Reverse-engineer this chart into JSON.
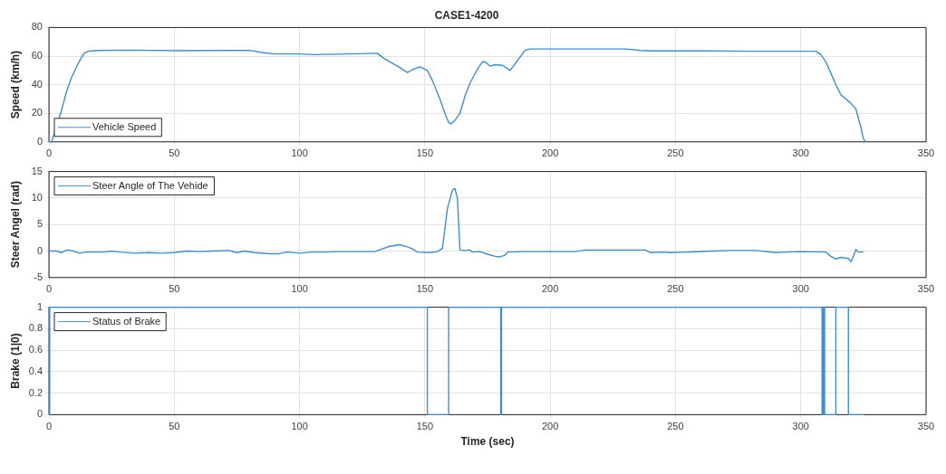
{
  "chart_data": [
    {
      "type": "line",
      "title": "CASE1-4200",
      "ylabel": "Speed (km/h)",
      "xlim": [
        0,
        350
      ],
      "xticks": [
        0,
        50,
        100,
        150,
        200,
        250,
        300,
        350
      ],
      "ylim": [
        0,
        80
      ],
      "yticks": [
        0,
        20,
        40,
        60,
        80
      ],
      "grid": true,
      "legend": "bottom left",
      "series": [
        {
          "name": "Vehicle Speed",
          "color": "#3d8fd1",
          "x": [
            0,
            1,
            3,
            5,
            7,
            9,
            12,
            14,
            16,
            20,
            33,
            50,
            75,
            80,
            85,
            90,
            100,
            105,
            120,
            131,
            134,
            140,
            143,
            145,
            148,
            151,
            153,
            156,
            158,
            159.5,
            160.5,
            162,
            164,
            166,
            168,
            171,
            173,
            174,
            176,
            178,
            181,
            184,
            187,
            190,
            192,
            200,
            230,
            236,
            240,
            260,
            280,
            306,
            308,
            310,
            314,
            316,
            320,
            322,
            324,
            325,
            326
          ],
          "values": [
            0,
            0,
            10,
            22,
            35,
            45,
            56,
            62,
            63.5,
            64,
            64.2,
            63.8,
            64,
            64,
            62.5,
            61.5,
            61.5,
            61,
            61.5,
            62,
            58,
            52,
            48.5,
            50.5,
            52.5,
            50,
            43,
            30,
            20,
            13.5,
            12.5,
            15,
            20,
            32,
            41,
            51,
            56,
            56,
            53,
            54,
            53.5,
            50,
            57,
            64,
            65,
            65,
            65,
            64,
            63.6,
            63.6,
            63.4,
            63.4,
            61,
            56,
            40,
            33,
            27,
            23,
            10,
            2,
            0
          ]
        }
      ]
    },
    {
      "type": "line",
      "ylabel": "Steer Angel (rad)",
      "xlim": [
        0,
        350
      ],
      "xticks": [
        0,
        50,
        100,
        150,
        200,
        250,
        300,
        350
      ],
      "ylim": [
        -5,
        15
      ],
      "yticks": [
        -5,
        0,
        5,
        10,
        15
      ],
      "grid": true,
      "legend": "top left",
      "series": [
        {
          "name": "Steer Angle of The Vehide",
          "color": "#3d8fd1",
          "x": [
            0,
            3,
            5,
            7,
            9,
            12,
            15,
            22,
            25,
            28,
            34,
            40,
            45,
            50,
            55,
            60,
            66,
            72,
            75,
            78,
            82,
            88,
            92,
            95,
            100,
            105,
            110,
            115,
            120,
            130,
            133,
            136,
            140,
            143,
            145,
            147,
            152,
            155,
            157,
            159,
            161,
            162,
            163,
            164,
            166,
            168,
            169,
            172,
            175,
            178,
            180,
            182,
            183,
            190,
            200,
            210,
            214,
            220,
            230,
            238,
            240,
            245,
            248,
            255,
            265,
            272,
            282,
            290,
            295,
            300,
            310,
            312,
            314,
            316,
            319,
            320,
            321,
            322,
            323,
            325
          ],
          "values": [
            0,
            0,
            -0.3,
            0.2,
            0.1,
            -0.4,
            -0.2,
            -0.2,
            0,
            -0.2,
            -0.4,
            -0.3,
            -0.4,
            -0.3,
            0,
            -0.1,
            0,
            0.1,
            -0.3,
            0,
            -0.3,
            -0.5,
            -0.5,
            -0.2,
            -0.4,
            -0.2,
            -0.2,
            -0.1,
            -0.1,
            -0.1,
            0.4,
            0.9,
            1.2,
            0.8,
            0.4,
            -0.2,
            -0.3,
            -0.1,
            0.5,
            8,
            11.5,
            11.8,
            10,
            0.2,
            0.1,
            0.2,
            -0.2,
            -0.1,
            -0.6,
            -1,
            -1.1,
            -0.8,
            -0.2,
            -0.1,
            -0.1,
            -0.1,
            0.2,
            0.2,
            0.2,
            0.2,
            -0.3,
            -0.2,
            -0.3,
            -0.2,
            0,
            0.1,
            0.1,
            -0.3,
            -0.2,
            -0.1,
            -0.2,
            -1,
            -1.5,
            -1.2,
            -1.4,
            -2,
            -1,
            0.3,
            -0.2,
            -0.2
          ]
        }
      ]
    },
    {
      "type": "step",
      "ylabel": "Brake (1|0)",
      "xlabel": "Time (sec)",
      "xlim": [
        0,
        350
      ],
      "xticks": [
        0,
        50,
        100,
        150,
        200,
        250,
        300,
        350
      ],
      "ylim": [
        0,
        1
      ],
      "yticks": [
        0,
        0.2,
        0.4,
        0.6,
        0.8,
        1
      ],
      "grid": true,
      "legend": "top left",
      "series": [
        {
          "name": "Status of Brake",
          "color": "#3d8fd1",
          "x": [
            0,
            0.3,
            151,
            159.5,
            180.3,
            180.6,
            308.5,
            309,
            309.5,
            314,
            319,
            325
          ],
          "values": [
            0,
            1,
            0,
            1,
            0,
            1,
            0,
            1,
            0,
            1,
            0,
            0
          ]
        }
      ]
    }
  ]
}
